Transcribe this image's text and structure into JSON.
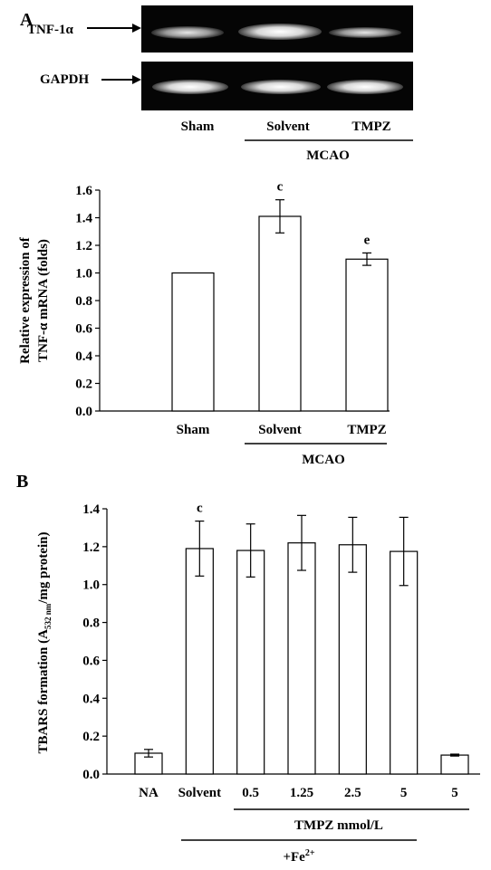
{
  "panel_a": {
    "label": "A",
    "gel": {
      "row_labels": [
        "TNF-1α",
        "GAPDH"
      ],
      "lane_labels": [
        "Sham",
        "Solvent",
        "TMPZ"
      ],
      "group_label": "MCAO"
    }
  },
  "panel_b": {
    "label": "B"
  },
  "chart_data": [
    {
      "type": "bar",
      "ylabel_lines": [
        "Relative expression of",
        "TNF-α mRNA (folds)"
      ],
      "categories": [
        "Sham",
        "Solvent",
        "TMPZ"
      ],
      "values": [
        1.0,
        1.41,
        1.1
      ],
      "errors": [
        0,
        0.12,
        0.045
      ],
      "annotations": [
        "",
        "c",
        "e"
      ],
      "group_label": "MCAO",
      "group_span": [
        "Solvent",
        "TMPZ"
      ],
      "ylim": [
        0,
        1.6
      ],
      "yticks": [
        "0.0",
        "0.2",
        "0.4",
        "0.6",
        "0.8",
        "1.0",
        "1.2",
        "1.4",
        "1.6"
      ],
      "grid": false
    },
    {
      "type": "bar",
      "ylabel_main": "TBARS formation (A",
      "ylabel_sub": "532 nm",
      "ylabel_tail": "/mg protein)",
      "categories": [
        "NA",
        "Solvent",
        "0.5",
        "1.25",
        "2.5",
        "5",
        "5"
      ],
      "values": [
        0.11,
        1.19,
        1.18,
        1.22,
        1.21,
        1.175,
        0.1
      ],
      "errors": [
        0.02,
        0.145,
        0.14,
        0.145,
        0.145,
        0.18,
        0.005
      ],
      "annotations": [
        "",
        "c",
        "",
        "",
        "",
        "",
        ""
      ],
      "group_label": "TMPZ  mmol/L",
      "group_label2_main": "+Fe",
      "group_label2_sup": "2+",
      "ylim": [
        0,
        1.4
      ],
      "yticks": [
        "0.0",
        "0.2",
        "0.4",
        "0.6",
        "0.8",
        "1.0",
        "1.2",
        "1.4"
      ],
      "grid": false
    }
  ]
}
